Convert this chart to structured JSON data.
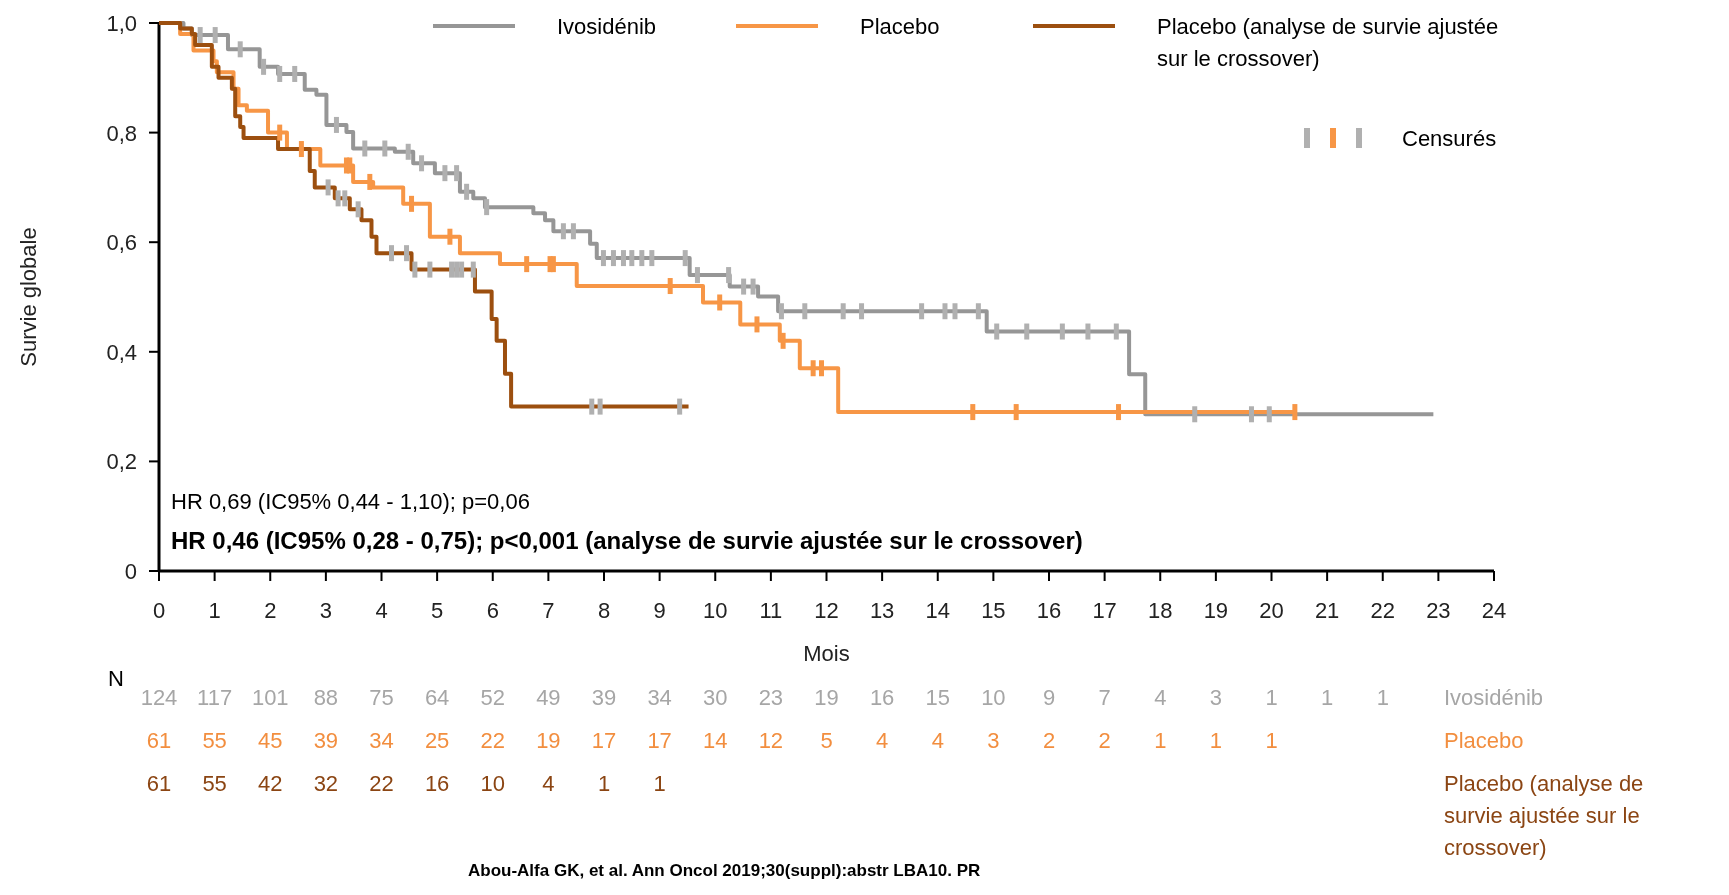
{
  "chart_data": {
    "type": "step",
    "xlabel": "Mois",
    "ylabel": "Survie globale",
    "xlim": [
      0,
      24
    ],
    "xticks": [
      0,
      1,
      2,
      3,
      4,
      5,
      6,
      7,
      8,
      9,
      10,
      11,
      12,
      13,
      14,
      15,
      16,
      17,
      18,
      19,
      20,
      21,
      22,
      23,
      24
    ],
    "ylim": [
      0,
      1
    ],
    "yticks": [
      {
        "value": 0,
        "label": "0"
      },
      {
        "value": 0.2,
        "label": "0,2"
      },
      {
        "value": 0.4,
        "label": "0,4"
      },
      {
        "value": 0.6,
        "label": "0,6"
      },
      {
        "value": 0.8,
        "label": "0,8"
      },
      {
        "value": 1,
        "label": "1,0"
      }
    ],
    "grid": false,
    "legend": "top",
    "series": [
      {
        "name": "Ivosidénib",
        "color": "#969696",
        "x": [
          0,
          0.44,
          0.59,
          1.24,
          1.81,
          2.14,
          2.62,
          2.83,
          3.01,
          3.37,
          3.49,
          4.24,
          4.57,
          4.96,
          5.41,
          5.65,
          5.86,
          6.73,
          6.94,
          7.09,
          7.75,
          7.87,
          9.54,
          10.26,
          10.77,
          11.13,
          14.88,
          17.44,
          17.73,
          22.91
        ],
        "values": [
          1,
          0.99,
          0.978,
          0.952,
          0.92,
          0.907,
          0.878,
          0.869,
          0.814,
          0.801,
          0.771,
          0.765,
          0.744,
          0.726,
          0.692,
          0.68,
          0.664,
          0.653,
          0.64,
          0.62,
          0.597,
          0.571,
          0.54,
          0.519,
          0.501,
          0.474,
          0.437,
          0.359,
          0.286,
          0.286
        ]
      },
      {
        "name": "Placebo",
        "color": "#f79646",
        "x": [
          0,
          0.38,
          0.62,
          0.98,
          1.04,
          1.34,
          1.43,
          1.58,
          1.96,
          2.3,
          2.9,
          3.49,
          3.85,
          4.39,
          4.87,
          5.41,
          6.13,
          7.51,
          9.78,
          10.45,
          11.16,
          11.52,
          12.21,
          20.42
        ],
        "values": [
          1,
          0.98,
          0.95,
          0.93,
          0.91,
          0.88,
          0.85,
          0.84,
          0.8,
          0.77,
          0.74,
          0.71,
          0.7,
          0.67,
          0.61,
          0.58,
          0.56,
          0.52,
          0.49,
          0.45,
          0.42,
          0.37,
          0.29,
          0.29
        ]
      },
      {
        "name": "Placebo (analyse de survie ajustée sur le crossover)",
        "color": "#9c4f0f",
        "x": [
          0,
          0.38,
          0.59,
          0.65,
          0.95,
          1.07,
          1.31,
          1.37,
          1.46,
          1.52,
          2.14,
          2.71,
          2.8,
          3.16,
          3.43,
          3.64,
          3.82,
          3.91,
          4.54,
          5.68,
          5.98,
          6.07,
          6.22,
          6.33,
          9.52
        ],
        "values": [
          1,
          0.99,
          0.98,
          0.96,
          0.92,
          0.9,
          0.88,
          0.83,
          0.81,
          0.79,
          0.77,
          0.73,
          0.7,
          0.68,
          0.66,
          0.64,
          0.61,
          0.58,
          0.55,
          0.51,
          0.46,
          0.42,
          0.36,
          0.3,
          0.3
        ]
      },
      {
        "name": "Censurés",
        "type": "scatter",
        "color": "#b0b0b0",
        "x": [
          0.74,
          1.01,
          1.46,
          1.88,
          2.17,
          2.44,
          3.19,
          3.7,
          4.06,
          4.48,
          4.72,
          5.14,
          5.35,
          5.53,
          5.89,
          7.27,
          7.45,
          7.99,
          8.17,
          8.35,
          8.5,
          8.68,
          8.86,
          9.46,
          9.68,
          10.24,
          10.51,
          10.68,
          11.19,
          11.61,
          12.3,
          12.63,
          13.71,
          14.13,
          14.31,
          14.73,
          15.06,
          15.6,
          16.24,
          16.7,
          17.21,
          18.62,
          19.64,
          19.96,
          2.17,
          2.56,
          3.37,
          3.43,
          3.79,
          4.54,
          5.23,
          6.61,
          7.03,
          7.09,
          9.19,
          10.08,
          10.75,
          11.22,
          11.76,
          11.91,
          14.63,
          15.41,
          17.25,
          20.42,
          3.04,
          3.22,
          3.34,
          3.58,
          4.18,
          4.45,
          4.6,
          4.87,
          5.26,
          5.35,
          5.44,
          5.65,
          7.78,
          7.93,
          9.36
        ],
        "values": [
          0.978,
          0.978,
          0.952,
          0.92,
          0.907,
          0.907,
          0.814,
          0.771,
          0.771,
          0.765,
          0.744,
          0.726,
          0.726,
          0.692,
          0.664,
          0.62,
          0.62,
          0.571,
          0.571,
          0.571,
          0.571,
          0.571,
          0.571,
          0.571,
          0.54,
          0.54,
          0.519,
          0.519,
          0.474,
          0.474,
          0.474,
          0.474,
          0.474,
          0.474,
          0.474,
          0.474,
          0.437,
          0.437,
          0.437,
          0.437,
          0.437,
          0.286,
          0.286,
          0.286,
          0.8,
          0.77,
          0.74,
          0.74,
          0.71,
          0.67,
          0.61,
          0.56,
          0.56,
          0.56,
          0.52,
          0.49,
          0.45,
          0.42,
          0.37,
          0.37,
          0.29,
          0.29,
          0.29,
          0.29,
          0.7,
          0.68,
          0.68,
          0.66,
          0.58,
          0.58,
          0.55,
          0.55,
          0.55,
          0.55,
          0.55,
          0.55,
          0.3,
          0.3,
          0.3
        ],
        "colors": [
          "#b0b0b0",
          "#b0b0b0",
          "#b0b0b0",
          "#b0b0b0",
          "#b0b0b0",
          "#b0b0b0",
          "#b0b0b0",
          "#b0b0b0",
          "#b0b0b0",
          "#b0b0b0",
          "#b0b0b0",
          "#b0b0b0",
          "#b0b0b0",
          "#b0b0b0",
          "#b0b0b0",
          "#b0b0b0",
          "#b0b0b0",
          "#b0b0b0",
          "#b0b0b0",
          "#b0b0b0",
          "#b0b0b0",
          "#b0b0b0",
          "#b0b0b0",
          "#b0b0b0",
          "#b0b0b0",
          "#b0b0b0",
          "#b0b0b0",
          "#b0b0b0",
          "#b0b0b0",
          "#b0b0b0",
          "#b0b0b0",
          "#b0b0b0",
          "#b0b0b0",
          "#b0b0b0",
          "#b0b0b0",
          "#b0b0b0",
          "#b0b0b0",
          "#b0b0b0",
          "#b0b0b0",
          "#b0b0b0",
          "#b0b0b0",
          "#b0b0b0",
          "#b0b0b0",
          "#b0b0b0",
          "#f79646",
          "#f79646",
          "#f79646",
          "#f79646",
          "#f79646",
          "#f79646",
          "#f79646",
          "#f79646",
          "#f79646",
          "#f79646",
          "#f79646",
          "#f79646",
          "#f79646",
          "#f79646",
          "#f79646",
          "#f79646",
          "#f79646",
          "#f79646",
          "#f79646",
          "#f79646",
          "#b0b0b0",
          "#b0b0b0",
          "#b0b0b0",
          "#b0b0b0",
          "#b0b0b0",
          "#b0b0b0",
          "#b0b0b0",
          "#b0b0b0",
          "#b0b0b0",
          "#b0b0b0",
          "#b0b0b0",
          "#b0b0b0",
          "#b0b0b0",
          "#b0b0b0",
          "#b0b0b0"
        ]
      }
    ],
    "annotations": [
      "HR 0,69 (IC95% 0,44 - 1,10); p=0,06",
      "HR 0,46 (IC95% 0,28 - 0,75); p<0,001 (analyse de survie ajustée sur le crossover)",
      "N",
      "124 117 101 88 75 64 52 49 39 34 30 23 19 16 15 10 9 7 4 3 1 1 1",
      "61 55 45 39 34 25 22 19 17 17 14 12 5 4 4 3 2 2 1 1 1",
      "61 55 42 32 22 16 10 4 1 1",
      "Ivosidénib",
      "Placebo",
      "Placebo (analyse de survie ajustée sur le crossover)",
      "Abou-Alfa GK, et al. Ann Oncol 2019;30(suppl):abstr LBA10. PR"
    ]
  }
}
